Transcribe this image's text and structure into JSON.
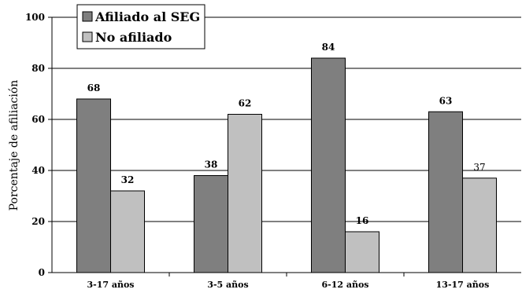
{
  "chart_data": {
    "type": "bar",
    "ylabel": "Porcentaje de afiliación",
    "ylim": [
      0,
      100
    ],
    "yticks": [
      "0",
      "20",
      "40",
      "60",
      "80",
      "100"
    ],
    "categories": [
      "3-17 años",
      "3-5 años",
      "6-12 años",
      "13-17 años"
    ],
    "series": [
      {
        "name": "Afiliado al SEG",
        "values": [
          68,
          38,
          84,
          63
        ],
        "labels": [
          "68",
          "38",
          "84",
          "63"
        ],
        "color": "#7f7f7f"
      },
      {
        "name": "No afiliado",
        "values": [
          32,
          62,
          16,
          37
        ],
        "labels": [
          "32",
          "62",
          "16",
          "37"
        ],
        "color": "#c0c0c0"
      }
    ],
    "grid": true,
    "legend_position": "top-left"
  }
}
